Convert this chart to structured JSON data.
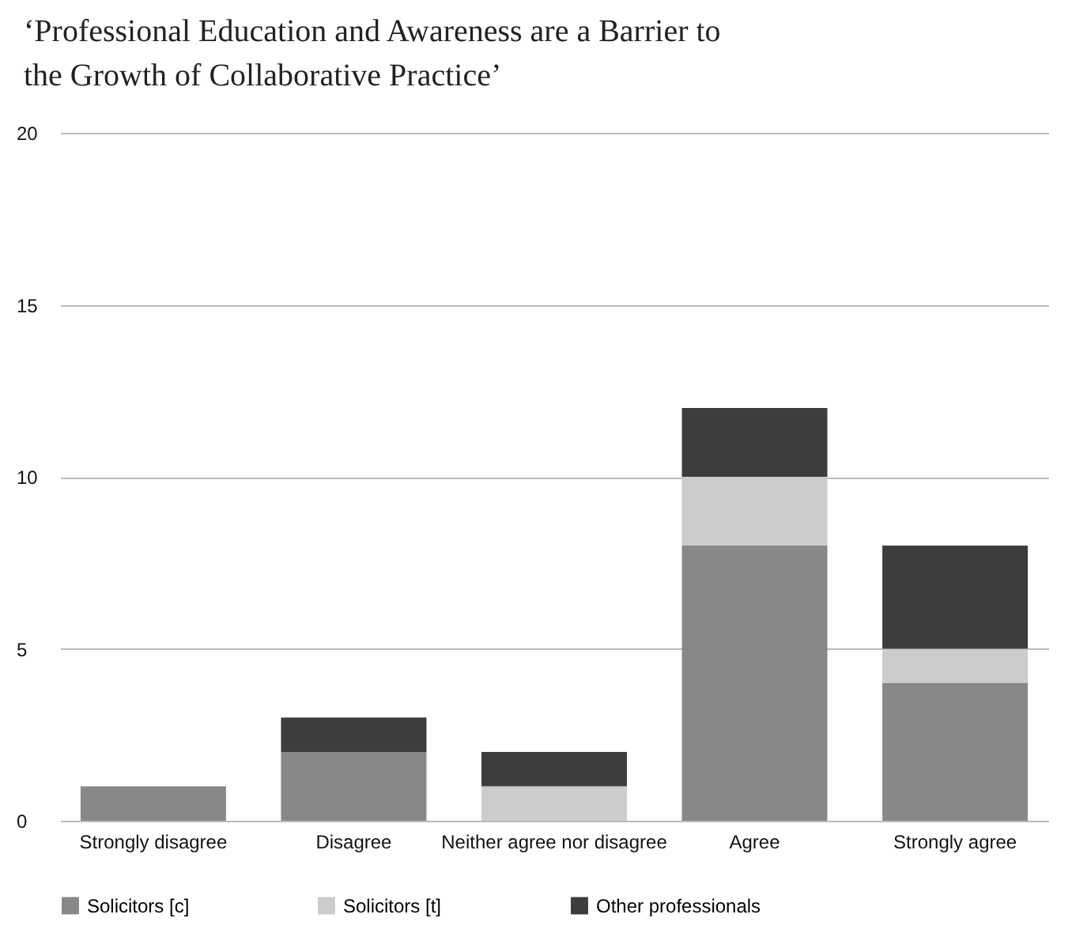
{
  "chart_data": {
    "type": "bar",
    "title": "‘Professional Education and Awareness are a Barrier to the Growth of Collaborative Practice’",
    "categories": [
      "Strongly disagree",
      "Disagree",
      "Neither agree nor disagree",
      "Agree",
      "Strongly agree"
    ],
    "stacked": true,
    "ylim": [
      0,
      20
    ],
    "yticks": [
      0,
      5,
      10,
      15,
      20
    ],
    "grid": "y",
    "legend": "bottom",
    "series": [
      {
        "name": "Solicitors [c]",
        "color": "#888888",
        "values": [
          1,
          2,
          0,
          8,
          4
        ]
      },
      {
        "name": "Solicitors [t]",
        "color": "#cccccc",
        "values": [
          0,
          0,
          1,
          2,
          1
        ]
      },
      {
        "name": "Other professionals",
        "color": "#3d3d3d",
        "values": [
          0,
          1,
          1,
          2,
          3
        ]
      }
    ]
  }
}
